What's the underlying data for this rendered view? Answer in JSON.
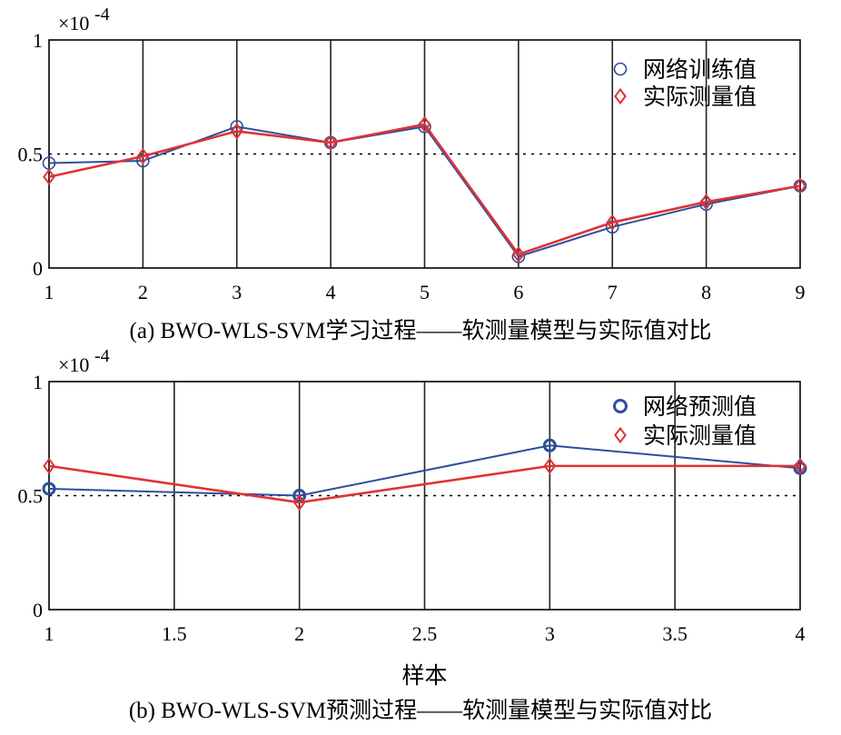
{
  "chart_data": [
    {
      "type": "line",
      "caption": "(a) BWO-WLS-SVM学习过程——软测量模型与实际值对比",
      "scale_note": "×10",
      "scale_exponent": "-4",
      "xlim": [
        1,
        9
      ],
      "ylim": [
        0,
        1
      ],
      "x_ticks": [
        "1",
        "2",
        "3",
        "4",
        "5",
        "6",
        "7",
        "8",
        "9"
      ],
      "y_ticks": [
        "0",
        "0.5",
        "1"
      ],
      "x_tick_values": [
        1,
        2,
        3,
        4,
        5,
        6,
        7,
        8,
        9
      ],
      "y_tick_values": [
        0,
        0.5,
        1
      ],
      "vertical_grid": true,
      "reference_line": 0.5,
      "legend_position": "top-right",
      "x": [
        1,
        2,
        3,
        4,
        5,
        6,
        7,
        8,
        9
      ],
      "series": [
        {
          "name": "网络训练值",
          "color": "#2b4f9e",
          "marker": "circle",
          "values": [
            0.46,
            0.47,
            0.62,
            0.55,
            0.62,
            0.05,
            0.18,
            0.28,
            0.36
          ]
        },
        {
          "name": "实际测量值",
          "color": "#e03236",
          "marker": "diamond",
          "values": [
            0.4,
            0.49,
            0.6,
            0.55,
            0.63,
            0.06,
            0.2,
            0.29,
            0.36
          ]
        }
      ]
    },
    {
      "type": "line",
      "caption": "(b) BWO-WLS-SVM预测过程——软测量模型与实际值对比",
      "scale_note": "×10",
      "scale_exponent": "-4",
      "xlabel": "样本",
      "xlim": [
        1,
        4
      ],
      "ylim": [
        0,
        1
      ],
      "x_ticks": [
        "1",
        "1.5",
        "2",
        "2.5",
        "3",
        "3.5",
        "4"
      ],
      "y_ticks": [
        "0",
        "0.5",
        "1"
      ],
      "x_tick_values": [
        1,
        1.5,
        2,
        2.5,
        3,
        3.5,
        4
      ],
      "y_tick_values": [
        0,
        0.5,
        1
      ],
      "vertical_grid": true,
      "reference_line": 0.5,
      "legend_position": "top-right",
      "x": [
        1,
        2,
        3,
        4
      ],
      "series": [
        {
          "name": "网络预测值",
          "color": "#2b4f9e",
          "marker": "circle",
          "values": [
            0.53,
            0.5,
            0.72,
            0.62
          ]
        },
        {
          "name": "实际测量值",
          "color": "#e03236",
          "marker": "diamond",
          "values": [
            0.63,
            0.47,
            0.63,
            0.63
          ]
        }
      ]
    }
  ]
}
